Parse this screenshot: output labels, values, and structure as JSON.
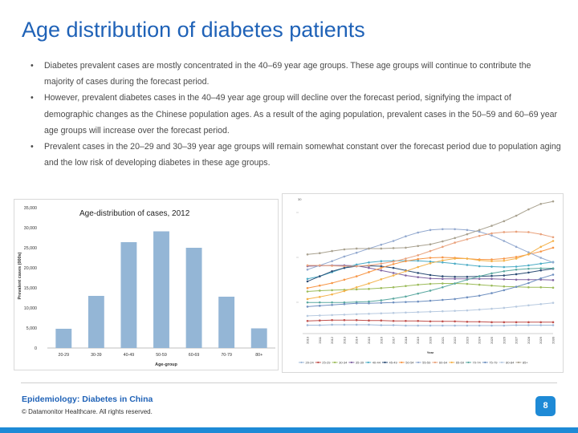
{
  "slide": {
    "title": "Age distribution of diabetes patients",
    "bullets": [
      "Diabetes prevalent cases are mostly concentrated in the 40–69 year age groups. These age groups will continue to contribute the majority of cases during the forecast period.",
      "However, prevalent diabetes cases in the 40–49 year age group will decline over the forecast period, signifying the impact of demographic changes as the Chinese population ages. As a result of the aging population, prevalent cases in the 50–59 and 60–69 year age groups will increase over the forecast period.",
      "Prevalent cases in the 20–29 and 30–39 year age groups will remain somewhat constant over the forecast period due to population aging and the low risk of developing diabetes in these age groups."
    ],
    "bullet_glyph": "•"
  },
  "footer": {
    "title": "Epidemiology: Diabetes in China",
    "copyright": "© Datamonitor Healthcare. All rights reserved.",
    "page_number": "8"
  },
  "colors": {
    "accent": "#1f62b7",
    "badge": "#1e8ad6",
    "bar": "#94b6d6"
  },
  "chart_data": [
    {
      "type": "bar",
      "title": "Age-distribution of cases, 2012",
      "xlabel": "Age-group",
      "ylabel": "Prevalent cases (000s)",
      "categories": [
        "20-29",
        "30-39",
        "40-49",
        "50-59",
        "60-69",
        "70-79",
        "80+"
      ],
      "values": [
        4800,
        13000,
        26400,
        29100,
        25000,
        12800,
        4900
      ],
      "ylim": [
        0,
        35000
      ],
      "yticks": [
        "0",
        "5,000",
        "10,000",
        "15,000",
        "20,000",
        "25,000",
        "30,000",
        "35,000"
      ],
      "grid": false,
      "color": "#94b6d6"
    },
    {
      "type": "line",
      "xlabel": "Year",
      "ytick_top": "30",
      "x": [
        "2010",
        "2011",
        "2012",
        "2013",
        "2014",
        "2015",
        "2016",
        "2017",
        "2018",
        "2019",
        "2020",
        "2021",
        "2022",
        "2023",
        "2024",
        "2025",
        "2026",
        "2027",
        "2028",
        "2029",
        "2030"
      ],
      "legend_position": "bottom",
      "series": [
        {
          "name": "20-24",
          "color": "#9fb9d9",
          "values": [
            2.0,
            2.0,
            2.1,
            2.1,
            2.1,
            2.1,
            2.0,
            2.0,
            1.9,
            1.9,
            1.9,
            1.9,
            1.9,
            1.9,
            1.9,
            1.9,
            1.9,
            2.0,
            2.0,
            2.0,
            2.0
          ]
        },
        {
          "name": "25-29",
          "color": "#c0504d",
          "values": [
            3.0,
            3.1,
            3.2,
            3.2,
            3.2,
            3.1,
            3.1,
            3.0,
            3.0,
            3.0,
            2.9,
            2.9,
            2.9,
            2.8,
            2.8,
            2.7,
            2.7,
            2.7,
            2.7,
            2.7,
            2.7
          ]
        },
        {
          "name": "30-34",
          "color": "#9bbb59",
          "values": [
            10.0,
            10.2,
            10.3,
            10.4,
            10.5,
            10.6,
            10.8,
            11.0,
            11.3,
            11.6,
            11.8,
            11.9,
            11.9,
            11.8,
            11.6,
            11.4,
            11.2,
            11.1,
            11.0,
            11.0,
            10.9
          ]
        },
        {
          "name": "35-39",
          "color": "#8064a2",
          "values": [
            16.0,
            16.1,
            16.2,
            16.2,
            16.1,
            15.6,
            15.0,
            14.4,
            13.8,
            13.4,
            13.1,
            13.0,
            13.0,
            13.0,
            13.0,
            13.0,
            12.9,
            12.8,
            12.8,
            12.8,
            12.7
          ]
        },
        {
          "name": "40-44",
          "color": "#4bacc6",
          "values": [
            13.0,
            13.6,
            14.6,
            15.6,
            16.4,
            16.9,
            17.2,
            17.3,
            17.3,
            17.3,
            17.1,
            16.9,
            16.6,
            16.3,
            16.0,
            15.9,
            15.8,
            15.9,
            16.2,
            16.6,
            17.0
          ]
        },
        {
          "name": "45-49",
          "color": "#2c4d75",
          "values": [
            12.4,
            13.6,
            14.8,
            15.6,
            16.0,
            16.1,
            16.0,
            15.6,
            15.0,
            14.4,
            13.9,
            13.6,
            13.5,
            13.5,
            13.6,
            13.7,
            13.8,
            14.1,
            14.5,
            15.0,
            15.4
          ]
        },
        {
          "name": "50-54",
          "color": "#f79646",
          "values": [
            10.8,
            11.4,
            12.0,
            12.8,
            13.6,
            14.6,
            15.6,
            16.5,
            17.2,
            17.7,
            18.0,
            18.1,
            18.0,
            17.8,
            17.6,
            17.6,
            17.8,
            18.2,
            18.8,
            19.5,
            20.4
          ]
        },
        {
          "name": "55-59",
          "color": "#93a9cf",
          "values": [
            15.2,
            16.2,
            17.2,
            18.3,
            19.2,
            20.2,
            21.1,
            22.0,
            23.1,
            24.0,
            24.6,
            24.8,
            24.8,
            24.6,
            24.2,
            23.3,
            22.0,
            20.6,
            19.3,
            18.0,
            16.9
          ]
        },
        {
          "name": "60-64",
          "color": "#e9a17b",
          "values": [
            16.2,
            16.2,
            16.1,
            16.0,
            16.0,
            16.2,
            16.6,
            17.1,
            17.8,
            18.6,
            19.6,
            20.6,
            21.6,
            22.4,
            23.2,
            23.8,
            24.1,
            24.2,
            24.1,
            23.6,
            22.9
          ]
        },
        {
          "name": "65-69",
          "color": "#f4b24a",
          "values": [
            8.2,
            8.7,
            9.3,
            10.1,
            11.0,
            11.9,
            12.9,
            13.8,
            14.8,
            15.8,
            16.7,
            17.4,
            17.8,
            17.8,
            17.4,
            17.2,
            17.3,
            17.8,
            18.9,
            20.6,
            22.0
          ]
        },
        {
          "name": "70-74",
          "color": "#5aa8a0",
          "values": [
            7.4,
            7.4,
            7.4,
            7.4,
            7.5,
            7.6,
            7.9,
            8.3,
            8.8,
            9.5,
            10.2,
            11.0,
            11.9,
            12.8,
            13.6,
            14.3,
            14.8,
            15.2,
            15.4,
            15.5,
            15.5
          ]
        },
        {
          "name": "75-79",
          "color": "#6f90c0",
          "values": [
            6.4,
            6.6,
            6.8,
            7.0,
            7.2,
            7.2,
            7.3,
            7.4,
            7.5,
            7.6,
            7.8,
            8.0,
            8.2,
            8.6,
            9.0,
            9.6,
            10.3,
            11.1,
            12.0,
            13.1,
            14.0
          ]
        },
        {
          "name": "80-84",
          "color": "#b8cae0",
          "values": [
            4.2,
            4.3,
            4.4,
            4.5,
            4.6,
            4.7,
            4.8,
            4.9,
            5.0,
            5.1,
            5.2,
            5.3,
            5.4,
            5.5,
            5.7,
            5.9,
            6.1,
            6.4,
            6.7,
            7.0,
            7.3
          ]
        },
        {
          "name": "85+",
          "color": "#a9a290",
          "values": [
            18.8,
            19.1,
            19.6,
            20.0,
            20.2,
            20.2,
            20.2,
            20.3,
            20.4,
            20.8,
            21.2,
            21.9,
            22.7,
            23.6,
            24.6,
            25.6,
            26.7,
            28.0,
            29.5,
            30.8,
            31.4
          ]
        }
      ]
    }
  ]
}
